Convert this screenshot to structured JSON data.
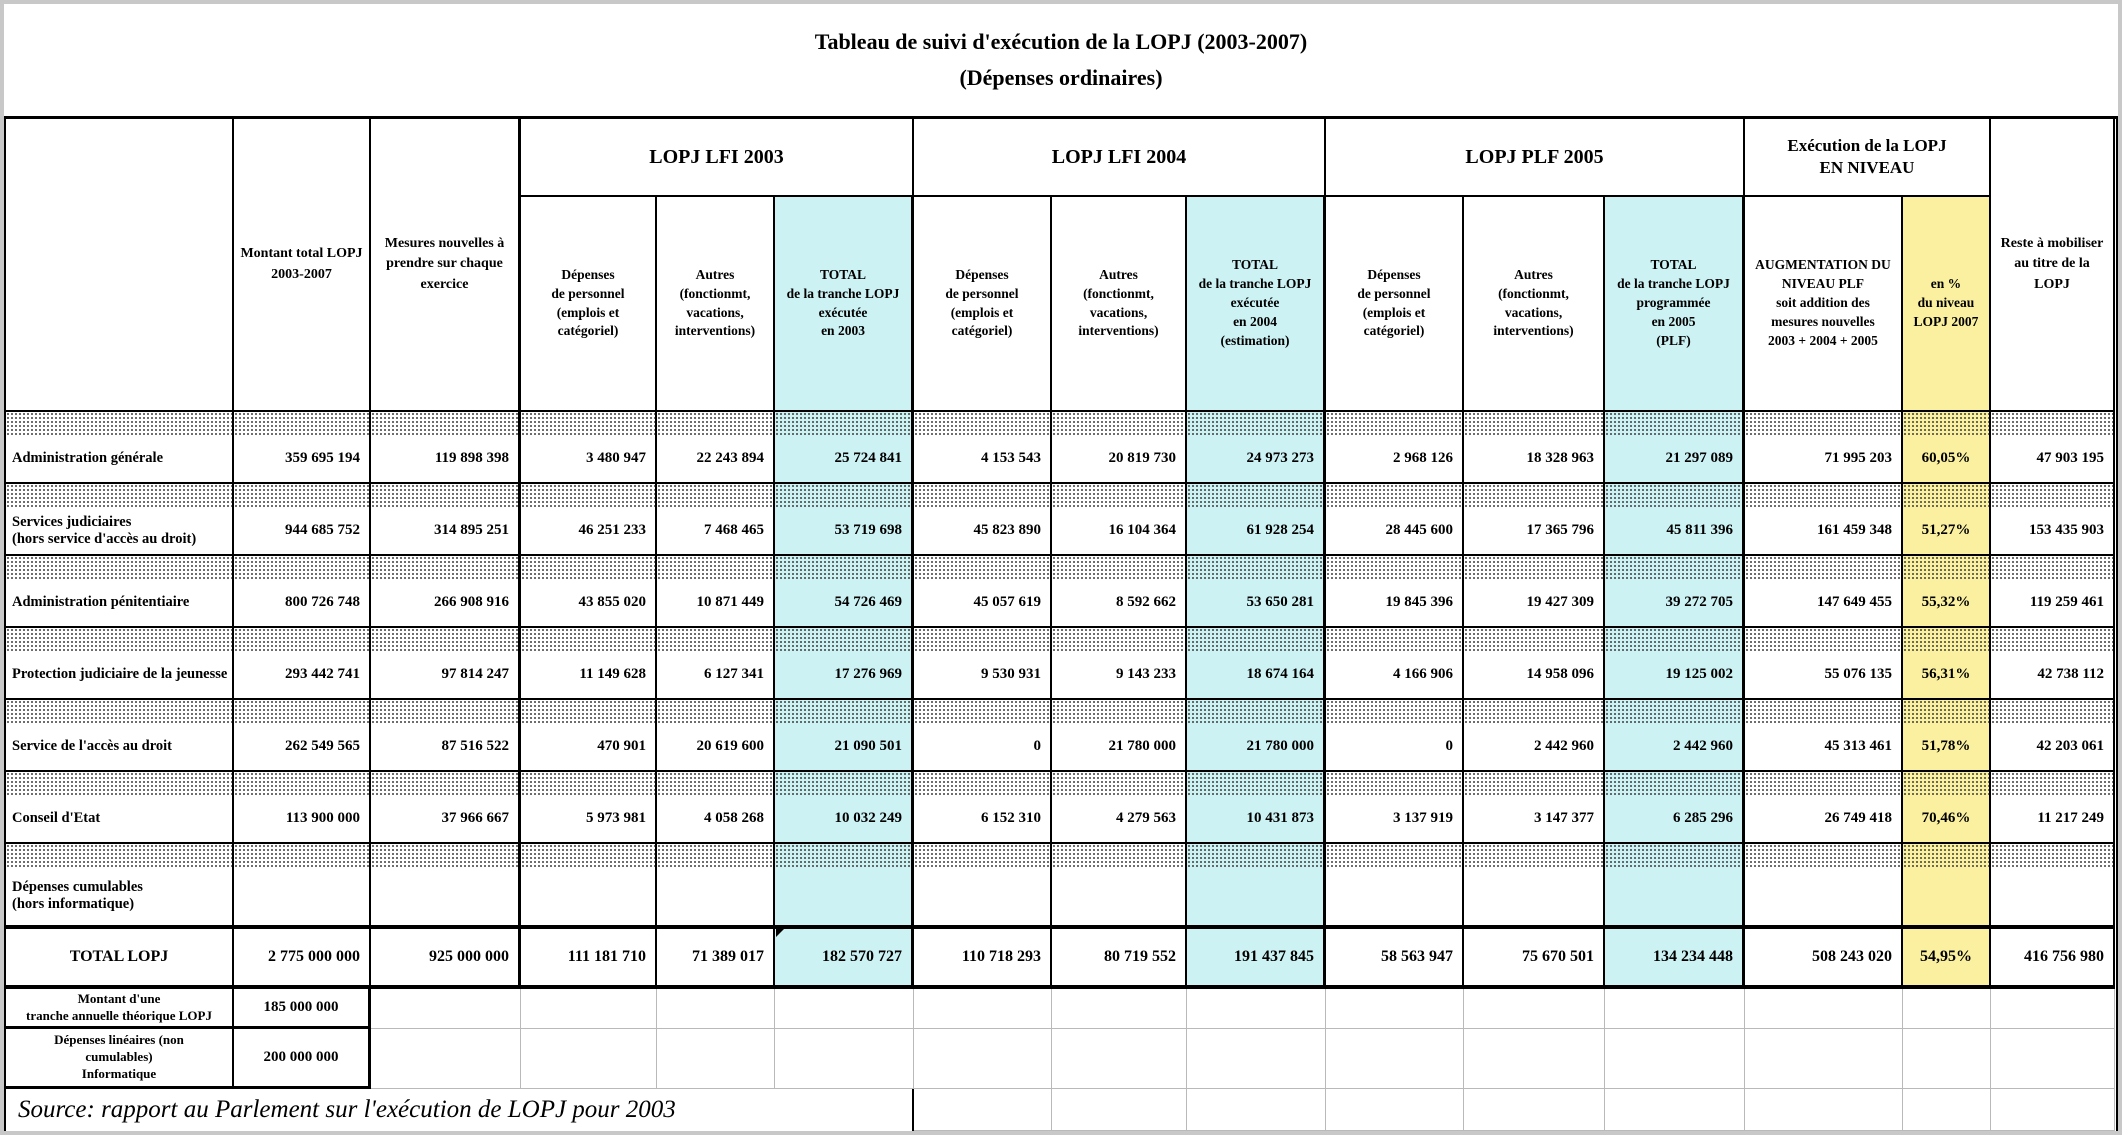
{
  "title": {
    "line1": "Tableau de suivi d'exécution de la LOPJ (2003-2007)",
    "line2": "(Dépenses ordinaires)"
  },
  "table": {
    "col_montant": "Montant total LOPJ\n2003-2007",
    "col_mesures": "Mesures nouvelles à\nprendre sur chaque\nexercice",
    "col_reste": "Reste à mobiliser\nau titre de la\nLOPJ",
    "groups": [
      {
        "label": "LOPJ LFI 2003"
      },
      {
        "label": "LOPJ LFI 2004"
      },
      {
        "label": "LOPJ PLF 2005"
      },
      {
        "label": "Exécution de la LOPJ\nEN NIVEAU"
      }
    ],
    "subheaders": [
      {
        "label": "Dépenses\nde personnel\n(emplois et\ncatégoriel)"
      },
      {
        "label": "Autres\n(fonctionmt,\nvacations,\ninterventions)"
      },
      {
        "label": "TOTAL\nde la tranche LOPJ\nexécutée\nen 2003"
      },
      {
        "label": "Dépenses\nde personnel\n(emplois et\ncatégoriel)"
      },
      {
        "label": "Autres\n(fonctionmt,\nvacations,\ninterventions)"
      },
      {
        "label": "TOTAL\nde la tranche LOPJ\nexécutée\nen 2004\n(estimation)"
      },
      {
        "label": "Dépenses\nde personnel\n(emplois et\ncatégoriel)"
      },
      {
        "label": "Autres\n(fonctionmt,\nvacations,\ninterventions)"
      },
      {
        "label": "TOTAL\nde la tranche LOPJ\nprogrammée\nen 2005\n(PLF)"
      },
      {
        "label": "AUGMENTATION DU\nNIVEAU PLF\nsoit addition des\nmesures nouvelles\n2003 + 2004 + 2005"
      },
      {
        "label": "en %\ndu niveau\nLOPJ 2007"
      }
    ],
    "rows": [
      {
        "label": "Administration générale",
        "values": [
          "359 695 194",
          "119 898 398",
          "3 480 947",
          "22 243 894",
          "25 724 841",
          "4 153 543",
          "20 819 730",
          "24 973 273",
          "2 968 126",
          "18 328 963",
          "21 297 089",
          "71 995 203",
          "60,05%",
          "47 903 195"
        ]
      },
      {
        "label": "Services judiciaires\n(hors service d'accès au droit)",
        "values": [
          "944 685 752",
          "314 895 251",
          "46 251 233",
          "7 468 465",
          "53 719 698",
          "45 823 890",
          "16 104 364",
          "61 928 254",
          "28 445 600",
          "17 365 796",
          "45 811 396",
          "161 459 348",
          "51,27%",
          "153 435 903"
        ]
      },
      {
        "label": "Administration pénitentiaire",
        "values": [
          "800 726 748",
          "266 908 916",
          "43 855 020",
          "10 871 449",
          "54 726 469",
          "45 057 619",
          "8 592 662",
          "53 650 281",
          "19 845 396",
          "19 427 309",
          "39 272 705",
          "147 649 455",
          "55,32%",
          "119 259 461"
        ]
      },
      {
        "label": "Protection judiciaire de la jeunesse",
        "values": [
          "293 442 741",
          "97 814 247",
          "11 149 628",
          "6 127 341",
          "17 276 969",
          "9 530 931",
          "9 143 233",
          "18 674 164",
          "4 166 906",
          "14 958 096",
          "19 125 002",
          "55 076 135",
          "56,31%",
          "42 738 112"
        ]
      },
      {
        "label": "Service de l'accès au droit",
        "values": [
          "262 549 565",
          "87 516 522",
          "470 901",
          "20 619 600",
          "21 090 501",
          "0",
          "21 780 000",
          "21 780 000",
          "0",
          "2 442 960",
          "2 442 960",
          "45 313 461",
          "51,78%",
          "42 203 061"
        ]
      },
      {
        "label": "Conseil d'Etat",
        "values": [
          "113 900 000",
          "37 966 667",
          "5 973 981",
          "4 058 268",
          "10 032 249",
          "6 152 310",
          "4 279 563",
          "10 431 873",
          "3 137 919",
          "3 147 377",
          "6 285 296",
          "26 749 418",
          "70,46%",
          "11 217 249"
        ]
      }
    ],
    "cumulables_label": "Dépenses cumulables\n(hors informatique)",
    "total_row": {
      "label": "TOTAL LOPJ",
      "values": [
        "2 775 000 000",
        "925 000 000",
        "111 181 710",
        "71 389 017",
        "182 570 727",
        "110 718 293",
        "80 719 552",
        "191 437 845",
        "58 563 947",
        "75 670 501",
        "134 234 448",
        "508 243 020",
        "54,95%",
        "416 756 980"
      ]
    },
    "bottom": {
      "montant_label": "Montant d'une\ntranche annuelle théorique LOPJ",
      "montant_value": "185 000 000",
      "lineaires_label": "Dépenses linéaires (non\ncumulables)\nInformatique",
      "lineaires_value": "200 000 000"
    },
    "source": "Source: rapport au Parlement sur l'exécution de LOPJ pour 2003"
  },
  "colors": {
    "total_column_bg": "#ccf2f4",
    "percent_column_bg": "#faf0a0",
    "frame_gray": "#c8c8c8"
  }
}
